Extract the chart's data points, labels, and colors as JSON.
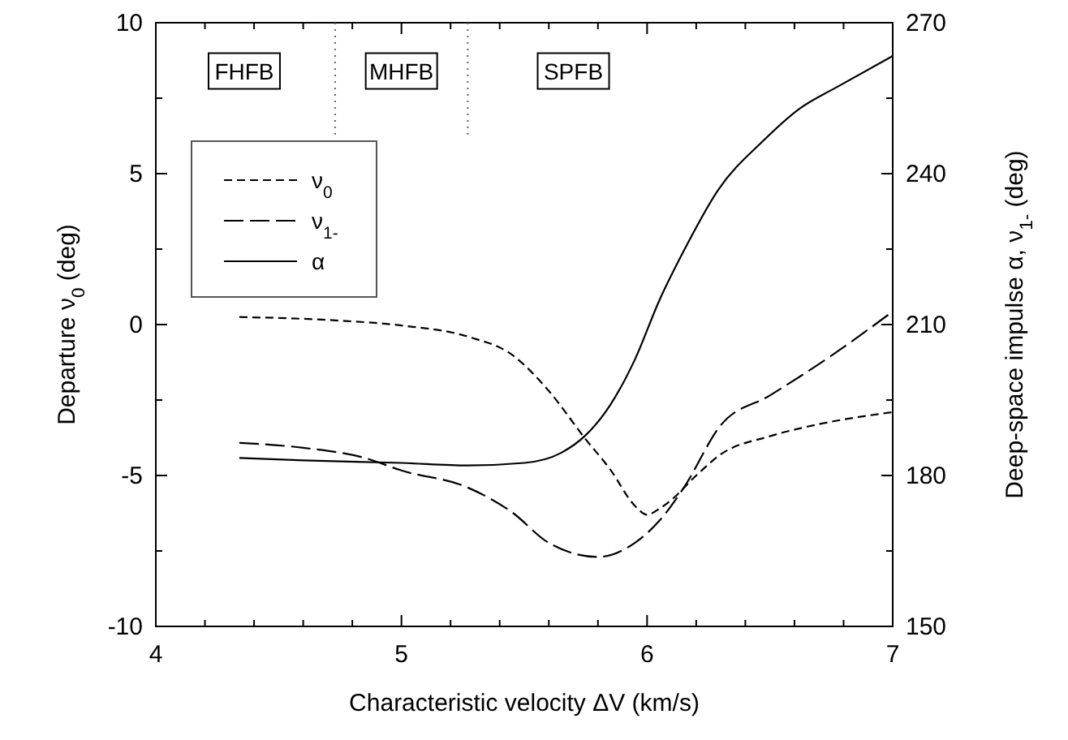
{
  "chart_data": {
    "type": "line",
    "xlabel": "Characteristic velocity  ΔV  (km/s)",
    "ylabel": "Departure  ν$_{0}$  (deg)",
    "y2label": "Deep-space impulse  α,  ν$_{1-}$  (deg)",
    "xlim": [
      4,
      7
    ],
    "xticks": [
      4,
      {
        "value": 4.2,
        "label": null
      },
      {
        "value": 4.4,
        "label": null
      },
      {
        "value": 4.6,
        "label": null
      },
      {
        "value": 4.8,
        "label": null
      },
      5,
      {
        "value": 5.2,
        "label": null
      },
      {
        "value": 5.4,
        "label": null
      },
      {
        "value": 5.6,
        "label": null
      },
      {
        "value": 5.8,
        "label": null
      },
      6,
      {
        "value": 6.2,
        "label": null
      },
      {
        "value": 6.4,
        "label": null
      },
      {
        "value": 6.6,
        "label": null
      },
      {
        "value": 6.8,
        "label": null
      },
      7
    ],
    "ylim": [
      -10,
      10
    ],
    "yticks": [
      -10,
      {
        "value": -7.5,
        "label": null
      },
      -5,
      {
        "value": -2.5,
        "label": null
      },
      0,
      {
        "value": 2.5,
        "label": null
      },
      5,
      {
        "value": 7.5,
        "label": null
      },
      10
    ],
    "y2lim": [
      150,
      270
    ],
    "y2ticks": [
      150,
      {
        "value": 165,
        "label": null
      },
      180,
      {
        "value": 195,
        "label": null
      },
      210,
      {
        "value": 225,
        "label": null
      },
      240,
      {
        "value": 255,
        "label": null
      },
      270
    ],
    "legend": "top left",
    "grid": false,
    "series": [
      {
        "name": "ν$_{0}$",
        "color": "#000000",
        "line_style": "dashed",
        "x": [
          4.34,
          4.75,
          5.0,
          5.27,
          5.45,
          5.6,
          5.75,
          5.85,
          5.95,
          6.0,
          6.05,
          6.1,
          6.2,
          6.3,
          6.5,
          6.7,
          7.0
        ],
        "values": [
          0.25,
          0.13,
          -0.03,
          -0.4,
          -1.0,
          -2.2,
          -3.8,
          -4.8,
          -6.0,
          -6.3,
          -6.1,
          -5.8,
          -5.0,
          -4.3,
          -3.7,
          -3.3,
          -2.9
        ]
      },
      {
        "name": "ν$_{1-}$",
        "color": "#000000",
        "line_style": "dashed",
        "axis": "y2",
        "x": [
          4.34,
          4.6,
          4.85,
          5.0,
          5.27,
          5.45,
          5.6,
          5.8,
          5.95,
          6.05,
          6.15,
          6.3,
          6.5,
          6.75,
          7.0
        ],
        "values": [
          186.5,
          185.5,
          183.5,
          181,
          177.6,
          172.7,
          166.6,
          163.8,
          166.6,
          171,
          177.6,
          190,
          195.9,
          203.8,
          212.6
        ]
      },
      {
        "name": "α",
        "color": "#000000",
        "line_style": "solid",
        "axis": "y2",
        "x": [
          4.34,
          4.6,
          5.0,
          5.27,
          5.5,
          5.65,
          5.75,
          5.85,
          5.95,
          6.05,
          6.15,
          6.29,
          6.47,
          6.62,
          6.78,
          7.0
        ],
        "values": [
          183.5,
          183,
          182.5,
          182,
          182.5,
          184.5,
          188,
          194,
          203,
          214.8,
          224.7,
          236.8,
          246.4,
          252.9,
          257.4,
          263.4
        ]
      }
    ],
    "ref_lines": [
      {
        "axis": "x",
        "value": 4.73,
        "line_style": "dotted"
      },
      {
        "axis": "x",
        "value": 5.27,
        "line_style": "dotted"
      }
    ],
    "annotations": [
      {
        "text": "FHFB",
        "x": 4.36,
        "y": 8.4
      },
      {
        "text": "MHFB",
        "x": 5.0,
        "y": 8.4
      },
      {
        "text": "SPFB",
        "x": 5.7,
        "y": 8.4
      }
    ]
  }
}
